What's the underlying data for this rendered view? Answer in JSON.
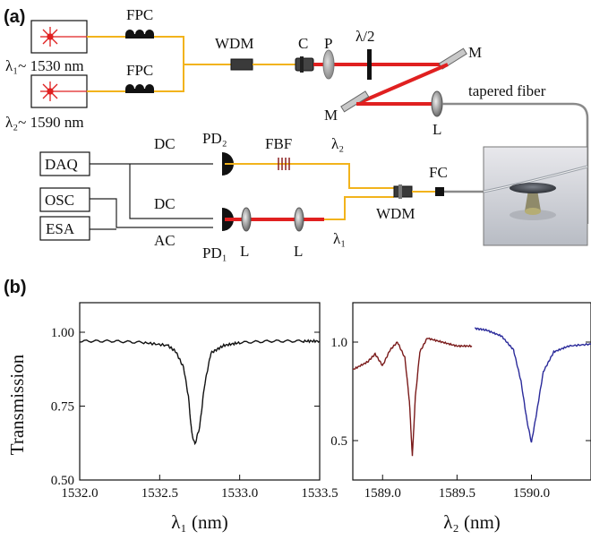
{
  "panel_a": {
    "label": "(a)",
    "laser1_wavelength": "λ₁~ 1530 nm",
    "laser2_wavelength": "λ₂~ 1590 nm",
    "fpc_top": "FPC",
    "fpc_bottom": "FPC",
    "wdm_top": "WDM",
    "collimator": "C",
    "polarizer": "P",
    "half_wave_plate": "λ/2",
    "mirror_right": "M",
    "mirror_left": "M",
    "tapered_fiber": "tapered fiber",
    "lens_top": "L",
    "daq": "DAQ",
    "osc": "OSC",
    "esa": "ESA",
    "dc_top": "DC",
    "dc_bottom": "DC",
    "ac": "AC",
    "pd2": "PD₂",
    "pd1": "PD₁",
    "fbf": "FBF",
    "lambda2": "λ₂",
    "lambda1": "λ₁",
    "fc": "FC",
    "wdm_bottom": "WDM",
    "lens_bottom_left": "L",
    "lens_bottom_right": "L",
    "colors": {
      "fiber": "#f2b31c",
      "beam": "#e02020",
      "cable": "#222222",
      "tapered": "#8a8a8a"
    }
  },
  "panel_b": {
    "label": "(b)",
    "ylabel": "Transmission"
  },
  "chart_data": [
    {
      "type": "line",
      "xlabel": "λ₁ (nm)",
      "ylabel": "Transmission",
      "xlim": [
        1532.0,
        1533.5
      ],
      "ylim": [
        0.5,
        1.1
      ],
      "xticks": [
        "1532.0",
        "1532.5",
        "1533.0",
        "1533.5"
      ],
      "yticks": [
        "0.50",
        "0.75",
        "1.00"
      ],
      "series": [
        {
          "color": "#111111",
          "x": [
            1532.0,
            1532.2,
            1532.4,
            1532.55,
            1532.6,
            1532.65,
            1532.68,
            1532.7,
            1532.72,
            1532.75,
            1532.78,
            1532.82,
            1532.9,
            1533.0,
            1533.2,
            1533.4,
            1533.5
          ],
          "y": [
            0.97,
            0.97,
            0.965,
            0.955,
            0.935,
            0.88,
            0.78,
            0.66,
            0.62,
            0.68,
            0.82,
            0.93,
            0.955,
            0.965,
            0.97,
            0.97,
            0.97
          ]
        }
      ]
    },
    {
      "type": "line",
      "xlabel": "λ₂ (nm)",
      "ylabel": "",
      "xlim": [
        1588.8,
        1590.4
      ],
      "ylim": [
        0.3,
        1.2
      ],
      "xticks": [
        "1589.0",
        "1589.5",
        "1590.0"
      ],
      "yticks": [
        "0.5",
        "1.0"
      ],
      "series": [
        {
          "color": "#7a1a1a",
          "x": [
            1588.8,
            1588.9,
            1588.95,
            1589.0,
            1589.05,
            1589.1,
            1589.15,
            1589.18,
            1589.2,
            1589.22,
            1589.25,
            1589.3,
            1589.4,
            1589.5,
            1589.6
          ],
          "y": [
            0.86,
            0.9,
            0.94,
            0.88,
            0.96,
            1.0,
            0.92,
            0.7,
            0.42,
            0.72,
            0.95,
            1.02,
            1.0,
            0.98,
            0.98
          ]
        },
        {
          "color": "#2a2a9a",
          "x": [
            1589.62,
            1589.7,
            1589.8,
            1589.88,
            1589.93,
            1589.97,
            1590.0,
            1590.03,
            1590.08,
            1590.15,
            1590.25,
            1590.4
          ],
          "y": [
            1.07,
            1.06,
            1.03,
            0.96,
            0.8,
            0.6,
            0.49,
            0.62,
            0.85,
            0.95,
            0.98,
            0.99
          ]
        }
      ]
    }
  ]
}
